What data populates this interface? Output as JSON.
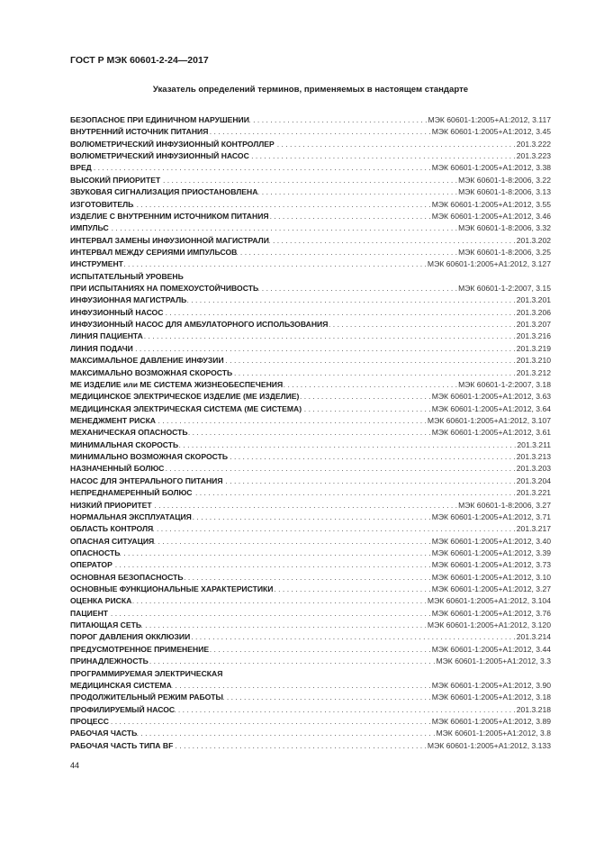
{
  "header": "ГОСТ Р МЭК 60601-2-24—2017",
  "title": "Указатель определений терминов, применяемых в настоящем стандарте",
  "entries": [
    {
      "term": "БЕЗОПАСНОЕ ПРИ ЕДИНИЧНОМ НАРУШЕНИИ",
      "ref": "МЭК 60601-1:2005+А1:2012, 3.117"
    },
    {
      "term": "ВНУТРЕННИЙ ИСТОЧНИК ПИТАНИЯ",
      "ref": "МЭК 60601-1:2005+А1:2012, 3.45"
    },
    {
      "term": "ВОЛЮМЕТРИЧЕСКИЙ ИНФУЗИОННЫЙ КОНТРОЛЛЕР",
      "ref": "201.3.222"
    },
    {
      "term": "ВОЛЮМЕТРИЧЕСКИЙ ИНФУЗИОННЫЙ НАСОС",
      "ref": "201.3.223"
    },
    {
      "term": "ВРЕД",
      "ref": "МЭК 60601-1:2005+А1:2012, 3.38"
    },
    {
      "term": "ВЫСОКИЙ ПРИОРИТЕТ",
      "ref": "МЭК 60601-1-8:2006, 3.22"
    },
    {
      "term": "ЗВУКОВАЯ СИГНАЛИЗАЦИЯ ПРИОСТАНОВЛЕНА",
      "ref": "МЭК 60601-1-8:2006, 3.13"
    },
    {
      "term": "ИЗГОТОВИТЕЛЬ",
      "ref": "МЭК 60601-1:2005+А1:2012, 3.55"
    },
    {
      "term": "ИЗДЕЛИЕ С ВНУТРЕННИМ ИСТОЧНИКОМ ПИТАНИЯ",
      "ref": "МЭК 60601-1:2005+А1:2012, 3.46"
    },
    {
      "term": "ИМПУЛЬС",
      "ref": "МЭК 60601-1-8:2006, 3.32"
    },
    {
      "term": "ИНТЕРВАЛ ЗАМЕНЫ ИНФУЗИОННОЙ МАГИСТРАЛИ",
      "ref": "201.3.202"
    },
    {
      "term": "ИНТЕРВАЛ МЕЖДУ СЕРИЯМИ ИМПУЛЬСОВ",
      "ref": "МЭК 60601-1-8:2006, 3.25"
    },
    {
      "term": "ИНСТРУМЕНТ",
      "ref": "МЭК 60601-1:2005+А1:2012, 3.127"
    },
    {
      "term": "ИСПЫТАТЕЛЬНЫЙ УРОВЕНЬ",
      "ref": ""
    },
    {
      "term": "ПРИ ИСПЫТАНИЯХ НА ПОМЕХОУСТОЙЧИВОСТЬ",
      "ref": "МЭК 60601-1-2:2007, 3.15"
    },
    {
      "term": "ИНФУЗИОННАЯ МАГИСТРАЛЬ",
      "ref": "201.3.201"
    },
    {
      "term": "ИНФУЗИОННЫЙ НАСОС",
      "ref": "201.3.206"
    },
    {
      "term": "ИНФУЗИОННЫЙ НАСОС ДЛЯ АМБУЛАТОРНОГО ИСПОЛЬЗОВАНИЯ",
      "ref": "201.3.207"
    },
    {
      "term": "ЛИНИЯ ПАЦИЕНТА",
      "ref": "201.3.216"
    },
    {
      "term": "ЛИНИЯ ПОДАЧИ",
      "ref": "201.3.219"
    },
    {
      "term": "МАКСИМАЛЬНОЕ ДАВЛЕНИЕ ИНФУЗИИ",
      "ref": "201.3.210"
    },
    {
      "term": "МАКСИМАЛЬНО ВОЗМОЖНАЯ СКОРОСТЬ",
      "ref": "201.3.212"
    },
    {
      "term": "МЕ ИЗДЕЛИЕ или МЕ СИСТЕМА ЖИЗНЕОБЕСПЕЧЕНИЯ",
      "ref": "МЭК 60601-1-2:2007, 3.18"
    },
    {
      "term": "МЕДИЦИНСКОЕ ЭЛЕКТРИЧЕСКОЕ ИЗДЕЛИЕ (МЕ ИЗДЕЛИЕ)",
      "ref": "МЭК 60601-1:2005+А1:2012, 3.63"
    },
    {
      "term": "МЕДИЦИНСКАЯ ЭЛЕКТРИЧЕСКАЯ СИСТЕМА (МЕ СИСТЕМА)",
      "ref": "МЭК 60601-1:2005+А1:2012, 3.64"
    },
    {
      "term": "МЕНЕДЖМЕНТ РИСКА",
      "ref": "МЭК 60601-1:2005+А1:2012, 3.107"
    },
    {
      "term": "МЕХАНИЧЕСКАЯ ОПАСНОСТЬ",
      "ref": "МЭК 60601-1:2005+А1:2012, 3.61"
    },
    {
      "term": "МИНИМАЛЬНАЯ СКОРОСТЬ",
      "ref": "201.3.211"
    },
    {
      "term": "МИНИМАЛЬНО ВОЗМОЖНАЯ СКОРОСТЬ",
      "ref": "201.3.213"
    },
    {
      "term": "НАЗНАЧЕННЫЙ БОЛЮС",
      "ref": "201.3.203"
    },
    {
      "term": "НАСОС ДЛЯ ЭНТЕРАЛЬНОГО ПИТАНИЯ",
      "ref": "201.3.204"
    },
    {
      "term": "НЕПРЕДНАМЕРЕННЫЙ БОЛЮС",
      "ref": "201.3.221"
    },
    {
      "term": "НИЗКИЙ ПРИОРИТЕТ",
      "ref": "МЭК 60601-1-8:2006, 3.27"
    },
    {
      "term": "НОРМАЛЬНАЯ ЭКСПЛУАТАЦИЯ",
      "ref": "МЭК 60601-1:2005+А1:2012, 3.71"
    },
    {
      "term": "ОБЛАСТЬ КОНТРОЛЯ",
      "ref": "201.3.217"
    },
    {
      "term": "ОПАСНАЯ СИТУАЦИЯ",
      "ref": "МЭК 60601-1:2005+А1:2012, 3.40"
    },
    {
      "term": "ОПАСНОСТЬ",
      "ref": "МЭК 60601-1:2005+А1:2012, 3.39"
    },
    {
      "term": "ОПЕРАТОР",
      "ref": "МЭК 60601-1:2005+А1:2012, 3.73"
    },
    {
      "term": "ОСНОВНАЯ БЕЗОПАСНОСТЬ",
      "ref": "МЭК 60601-1:2005+А1:2012, 3.10"
    },
    {
      "term": "ОСНОВНЫЕ ФУНКЦИОНАЛЬНЫЕ ХАРАКТЕРИСТИКИ",
      "ref": "МЭК 60601-1:2005+А1:2012, 3.27"
    },
    {
      "term": "ОЦЕНКА РИСКА",
      "ref": "МЭК 60601-1:2005+А1:2012, 3.104"
    },
    {
      "term": "ПАЦИЕНТ",
      "ref": "МЭК 60601-1:2005+А1:2012, 3.76"
    },
    {
      "term": "ПИТАЮЩАЯ СЕТЬ",
      "ref": "МЭК 60601-1:2005+А1:2012, 3.120"
    },
    {
      "term": "ПОРОГ ДАВЛЕНИЯ ОККЛЮЗИИ",
      "ref": "201.3.214"
    },
    {
      "term": "ПРЕДУСМОТРЕННОЕ ПРИМЕНЕНИЕ",
      "ref": "МЭК 60601-1:2005+А1:2012, 3.44"
    },
    {
      "term": "ПРИНАДЛЕЖНОСТЬ",
      "ref": "МЭК 60601-1:2005+А1:2012, 3.3"
    },
    {
      "term": "ПРОГРАММИРУЕМАЯ ЭЛЕКТРИЧЕСКАЯ",
      "ref": ""
    },
    {
      "term": "МЕДИЦИНСКАЯ СИСТЕМА",
      "ref": "МЭК 60601-1:2005+А1:2012, 3.90"
    },
    {
      "term": "ПРОДОЛЖИТЕЛЬНЫЙ РЕЖИМ РАБОТЫ",
      "ref": "МЭК 60601-1:2005+А1:2012, 3.18"
    },
    {
      "term": "ПРОФИЛИРУЕМЫЙ НАСОС",
      "ref": "201.3.218"
    },
    {
      "term": "ПРОЦЕСС",
      "ref": "МЭК 60601-1:2005+А1:2012, 3.89"
    },
    {
      "term": "РАБОЧАЯ ЧАСТЬ",
      "ref": "МЭК 60601-1:2005+А1:2012, 3.8"
    },
    {
      "term": "РАБОЧАЯ ЧАСТЬ ТИПА BF",
      "ref": "МЭК 60601-1:2005+А1:2012, 3.133"
    }
  ],
  "page_number": "44"
}
